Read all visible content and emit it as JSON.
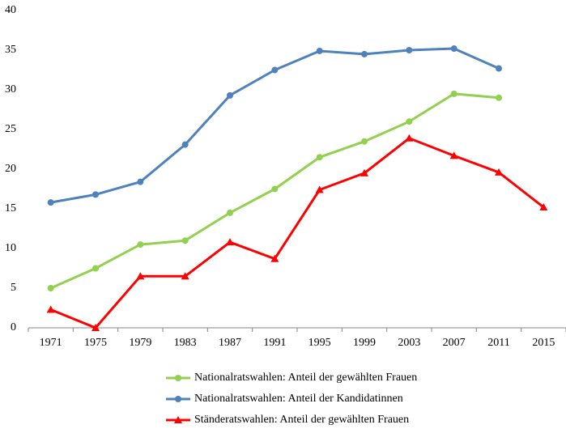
{
  "chart_data": {
    "type": "line",
    "categories": [
      "1971",
      "1975",
      "1979",
      "1983",
      "1987",
      "1991",
      "1995",
      "1999",
      "2003",
      "2007",
      "2011",
      "2015"
    ],
    "series": [
      {
        "name": "Nationalratswahlen: Anteil der gewählten Frauen",
        "color": "#92d050",
        "marker": "circle",
        "values": [
          5,
          7.5,
          10.5,
          11,
          14.5,
          17.5,
          21.5,
          23.5,
          26,
          29.5,
          29,
          null
        ]
      },
      {
        "name": "Nationalratswahlen: Anteil der Kandidatinnen",
        "color": "#4f81bd",
        "marker": "circle",
        "values": [
          15.8,
          16.8,
          18.4,
          23.1,
          29.3,
          32.5,
          34.9,
          34.5,
          35.0,
          35.2,
          32.7,
          null
        ]
      },
      {
        "name": "Ständeratswahlen: Anteil der gewählten Frauen",
        "color": "#ff0000",
        "marker": "triangle",
        "values": [
          2.3,
          0,
          6.5,
          6.5,
          10.8,
          8.7,
          17.4,
          19.5,
          23.9,
          21.7,
          19.6,
          15.2
        ]
      }
    ],
    "ylim": [
      0,
      40
    ],
    "yticks": [
      0,
      5,
      10,
      15,
      20,
      25,
      30,
      35,
      40
    ],
    "grid": false,
    "legend": "bottom"
  }
}
